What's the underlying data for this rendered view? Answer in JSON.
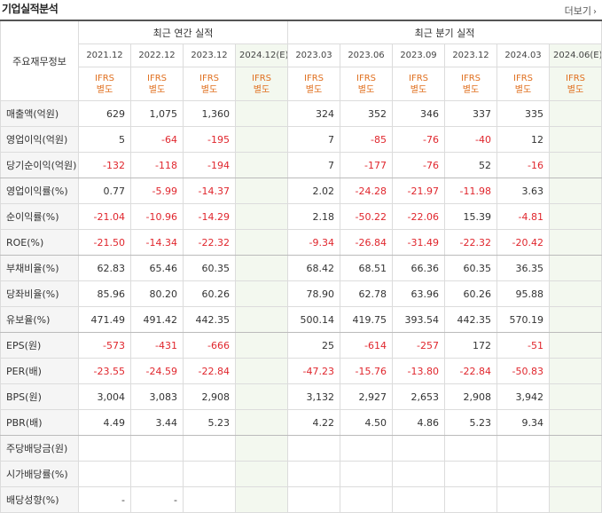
{
  "header": {
    "title": "기업실적분석",
    "more_label": "더보기",
    "more_arrow": "›"
  },
  "table": {
    "row_header_label": "주요재무정보",
    "annual_label": "최근 연간 실적",
    "quarter_label": "최근 분기 실적",
    "periods": [
      "2021.12",
      "2022.12",
      "2023.12",
      "2024.12(E)",
      "2023.03",
      "2023.06",
      "2023.09",
      "2023.12",
      "2024.03",
      "2024.06(E)"
    ],
    "ifrs_top": "IFRS",
    "ifrs_bottom": "별도",
    "rows": [
      {
        "label": "매출액(억원)",
        "values": [
          "629",
          "1,075",
          "1,360",
          "",
          "324",
          "352",
          "346",
          "337",
          "335",
          ""
        ]
      },
      {
        "label": "영업이익(억원)",
        "values": [
          "5",
          "-64",
          "-195",
          "",
          "7",
          "-85",
          "-76",
          "-40",
          "12",
          ""
        ]
      },
      {
        "label": "당기순이익(억원)",
        "values": [
          "-132",
          "-118",
          "-194",
          "",
          "7",
          "-177",
          "-76",
          "52",
          "-16",
          ""
        ]
      },
      {
        "label": "영업이익률(%)",
        "values": [
          "0.77",
          "-5.99",
          "-14.37",
          "",
          "2.02",
          "-24.28",
          "-21.97",
          "-11.98",
          "3.63",
          ""
        ]
      },
      {
        "label": "순이익률(%)",
        "values": [
          "-21.04",
          "-10.96",
          "-14.29",
          "",
          "2.18",
          "-50.22",
          "-22.06",
          "15.39",
          "-4.81",
          ""
        ]
      },
      {
        "label": "ROE(%)",
        "values": [
          "-21.50",
          "-14.34",
          "-22.32",
          "",
          "-9.34",
          "-26.84",
          "-31.49",
          "-22.32",
          "-20.42",
          ""
        ]
      },
      {
        "label": "부채비율(%)",
        "values": [
          "62.83",
          "65.46",
          "60.35",
          "",
          "68.42",
          "68.51",
          "66.36",
          "60.35",
          "36.35",
          ""
        ]
      },
      {
        "label": "당좌비율(%)",
        "values": [
          "85.96",
          "80.20",
          "60.26",
          "",
          "78.90",
          "62.78",
          "63.96",
          "60.26",
          "95.88",
          ""
        ]
      },
      {
        "label": "유보율(%)",
        "values": [
          "471.49",
          "491.42",
          "442.35",
          "",
          "500.14",
          "419.75",
          "393.54",
          "442.35",
          "570.19",
          ""
        ]
      },
      {
        "label": "EPS(원)",
        "values": [
          "-573",
          "-431",
          "-666",
          "",
          "25",
          "-614",
          "-257",
          "172",
          "-51",
          ""
        ]
      },
      {
        "label": "PER(배)",
        "values": [
          "-23.55",
          "-24.59",
          "-22.84",
          "",
          "-47.23",
          "-15.76",
          "-13.80",
          "-22.84",
          "-50.83",
          ""
        ]
      },
      {
        "label": "BPS(원)",
        "values": [
          "3,004",
          "3,083",
          "2,908",
          "",
          "3,132",
          "2,927",
          "2,653",
          "2,908",
          "3,942",
          ""
        ]
      },
      {
        "label": "PBR(배)",
        "values": [
          "4.49",
          "3.44",
          "5.23",
          "",
          "4.22",
          "4.50",
          "4.86",
          "5.23",
          "9.34",
          ""
        ]
      },
      {
        "label": "주당배당금(원)",
        "values": [
          "",
          "",
          "",
          "",
          "",
          "",
          "",
          "",
          "",
          ""
        ]
      },
      {
        "label": "시가배당률(%)",
        "values": [
          "",
          "",
          "",
          "",
          "",
          "",
          "",
          "",
          "",
          ""
        ]
      },
      {
        "label": "배당성향(%)",
        "values": [
          "-",
          "-",
          "",
          "",
          "",
          "",
          "",
          "",
          "",
          ""
        ]
      }
    ]
  },
  "colors": {
    "negative": "#e0262d",
    "ifrs": "#e07020",
    "estimate_bg": "#f3f8ef"
  }
}
